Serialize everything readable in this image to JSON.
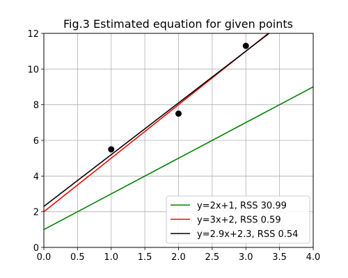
{
  "chart_data": {
    "type": "line",
    "title": "Fig.3 Estimated equation for given points",
    "xlabel": "",
    "ylabel": "",
    "xlim": [
      0.0,
      4.0
    ],
    "ylim": [
      0,
      12
    ],
    "x_ticks": [
      "0.0",
      "0.5",
      "1.0",
      "1.5",
      "2.0",
      "2.5",
      "3.0",
      "3.5",
      "4.0"
    ],
    "y_ticks": [
      "0",
      "2",
      "4",
      "6",
      "8",
      "10",
      "12"
    ],
    "grid": true,
    "legend_position": "lower-right",
    "points": {
      "color": "#000000",
      "x": [
        1,
        2,
        3
      ],
      "y": [
        5.5,
        7.5,
        11.3
      ]
    },
    "series": [
      {
        "name": "y=2x+1, RSS 30.99",
        "color": "#008000",
        "slope": 2,
        "intercept": 1
      },
      {
        "name": "y=3x+2, RSS 0.59",
        "color": "#ff0000",
        "slope": 3,
        "intercept": 2
      },
      {
        "name": "y=2.9x+2.3, RSS 0.54",
        "color": "#000000",
        "slope": 2.9,
        "intercept": 2.3
      }
    ]
  }
}
